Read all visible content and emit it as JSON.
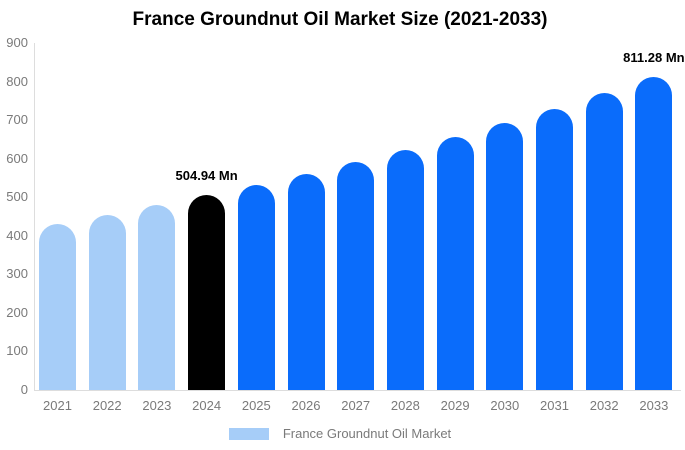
{
  "page": {
    "background_color": "#ffffff"
  },
  "chart_data": {
    "type": "bar",
    "title": "France Groundnut Oil Market Size (2021-2033)",
    "categories": [
      "2021",
      "2022",
      "2023",
      "2024",
      "2025",
      "2026",
      "2027",
      "2028",
      "2029",
      "2030",
      "2031",
      "2032",
      "2033"
    ],
    "values": [
      431.0,
      454.3,
      478.9,
      504.94,
      532.3,
      561.0,
      591.4,
      623.4,
      657.1,
      692.7,
      730.1,
      769.6,
      811.28
    ],
    "unit": "Mn",
    "segments": [
      "historical",
      "historical",
      "historical",
      "highlight",
      "forecast",
      "forecast",
      "forecast",
      "forecast",
      "forecast",
      "forecast",
      "forecast",
      "forecast",
      "forecast"
    ],
    "colors": {
      "historical": "#a6cdf8",
      "highlight": "#000000",
      "forecast": "#0a6cfb"
    },
    "labeled_points": [
      {
        "category": "2024",
        "label": "504.94 Mn"
      },
      {
        "category": "2033",
        "label": "811.28 Mn"
      }
    ],
    "y_ticks": [
      0,
      100,
      200,
      300,
      400,
      500,
      600,
      700,
      800,
      900
    ],
    "ylim": [
      0,
      900
    ],
    "xlabel": "",
    "ylabel": "",
    "grid": "off",
    "axis_line_color": "#dddddd",
    "tick_label_color": "#7a7a7a",
    "title_color": "#000000",
    "legend": {
      "position": "bottom",
      "label": "France Groundnut Oil Market",
      "swatch_color": "#a6cdf8"
    }
  }
}
